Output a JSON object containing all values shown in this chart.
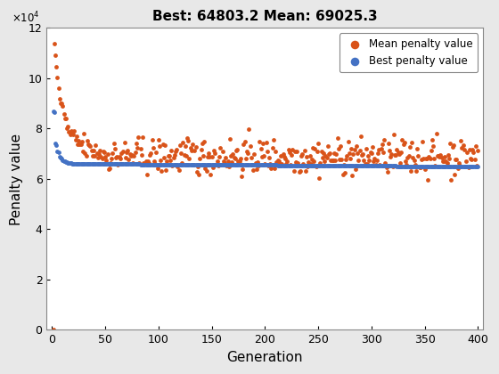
{
  "title": "Best: 64803.2 Mean: 69025.3",
  "xlabel": "Generation",
  "ylabel": "Penalty value",
  "xlim": [
    -5,
    405
  ],
  "ylim": [
    0,
    120000
  ],
  "yticks": [
    0,
    20000,
    40000,
    60000,
    80000,
    100000,
    120000
  ],
  "xticks": [
    0,
    50,
    100,
    150,
    200,
    250,
    300,
    350,
    400
  ],
  "best_color": "#4472C4",
  "mean_color": "#D95319",
  "best_label": "Best penalty value",
  "mean_label": "Mean penalty value",
  "marker_size": 12,
  "background_color": "#E8E8E8",
  "axes_bg_color": "#FFFFFF",
  "grid_color": "#FFFFFF",
  "seed": 42,
  "n_generations": 400
}
